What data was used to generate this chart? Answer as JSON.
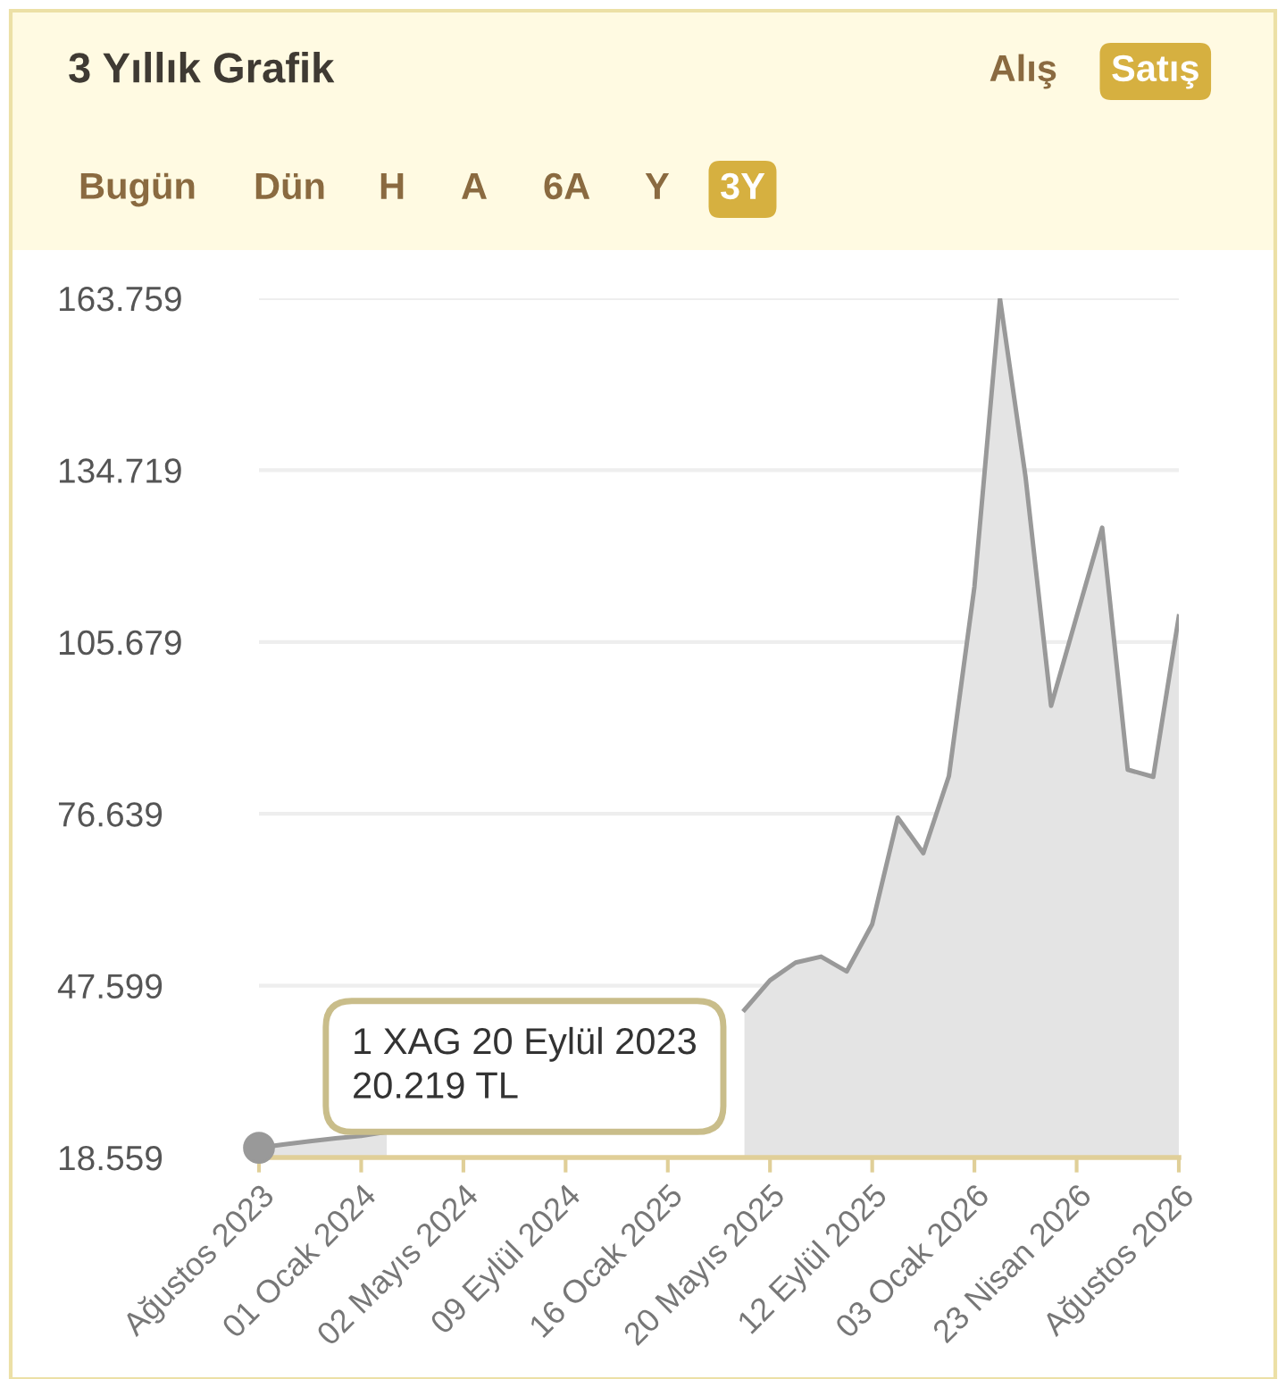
{
  "chart_data": {
    "type": "area",
    "title": "3 Yıllık Grafik",
    "categories": [
      "Ağustos 2023",
      null,
      null,
      null,
      "01 Ocak 2024",
      null,
      null,
      null,
      "02 Mayıs 2024",
      null,
      null,
      null,
      "09 Eylül 2024",
      null,
      null,
      null,
      "16 Ocak 2025",
      null,
      null,
      null,
      "20 Mayıs 2025",
      null,
      null,
      null,
      "12 Eylül 2025",
      null,
      null,
      null,
      "03 Ocak 2026",
      null,
      null,
      null,
      "23 Nisan 2026",
      null,
      null,
      null,
      "Ağustos 2026"
    ],
    "series": [
      {
        "color": "#999999",
        "values": [
          20.2,
          20.8,
          21.3,
          21.8,
          22.2,
          22.9,
          null,
          null,
          null,
          null,
          null,
          null,
          null,
          null,
          null,
          null,
          null,
          null,
          null,
          43.5,
          48.5,
          51.5,
          52.5,
          50.0,
          58.0,
          76.0,
          70.0,
          83.0,
          115.0,
          163.7,
          133.6,
          94.9,
          110.0,
          125.0,
          84.1,
          82.9,
          110.0
        ]
      }
    ],
    "ylim": [
      18.559,
      163.759
    ],
    "yticks": [
      18.559,
      47.599,
      76.639,
      105.679,
      134.719,
      163.759
    ],
    "grid": "y",
    "annotations": [
      "1 XAG 20 Eylül 2023\n20.219 TL",
      "Alış",
      "Satış",
      "Bugün",
      "Dün",
      "H",
      "A",
      "6A",
      "Y",
      "3Y"
    ]
  }
}
